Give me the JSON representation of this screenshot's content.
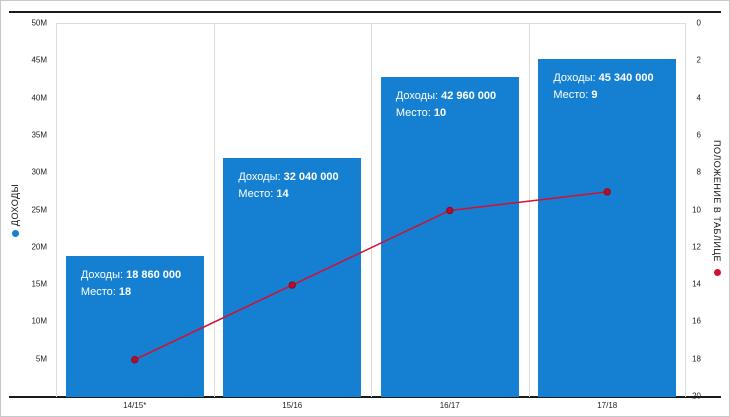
{
  "chart_data": {
    "type": "bar",
    "categories": [
      "14/15*",
      "15/16",
      "16/17",
      "17/18"
    ],
    "series": [
      {
        "name": "ДОХОДЫ",
        "type": "bar",
        "axis": "left",
        "color": "#1580d2",
        "values": [
          18860000,
          32040000,
          42960000,
          45340000
        ],
        "display_values": [
          "18 860 000",
          "32 040 000",
          "42 960 000",
          "45 340 000"
        ]
      },
      {
        "name": "ПОЛОЖЕНИЕ В ТАБЛИЦЕ",
        "type": "line",
        "axis": "right",
        "color": "#d40f31",
        "marker_fill": "#b50d2c",
        "marker_stroke": "#8f0a22",
        "values": [
          18,
          14,
          10,
          9
        ]
      }
    ],
    "annotation_labels": {
      "revenue": "Доходы:",
      "place": "Место:"
    },
    "left_axis": {
      "title": "ДОХОДЫ",
      "min": 0,
      "max": 50000000,
      "tick_step": 5000000,
      "tick_labels": [
        "50M",
        "45M",
        "40M",
        "35M",
        "30M",
        "25M",
        "20M",
        "15M",
        "10M",
        "5M"
      ]
    },
    "right_axis": {
      "title": "ПОЛОЖЕНИЕ В ТАБЛИЦЕ",
      "min": 0,
      "max": 20,
      "tick_step": 2,
      "inverted": true,
      "tick_labels": [
        "0",
        "2",
        "4",
        "6",
        "8",
        "10",
        "12",
        "14",
        "16",
        "18",
        "20"
      ]
    },
    "grid": "vertical",
    "legend_position": "axis-titles-with-dots"
  }
}
